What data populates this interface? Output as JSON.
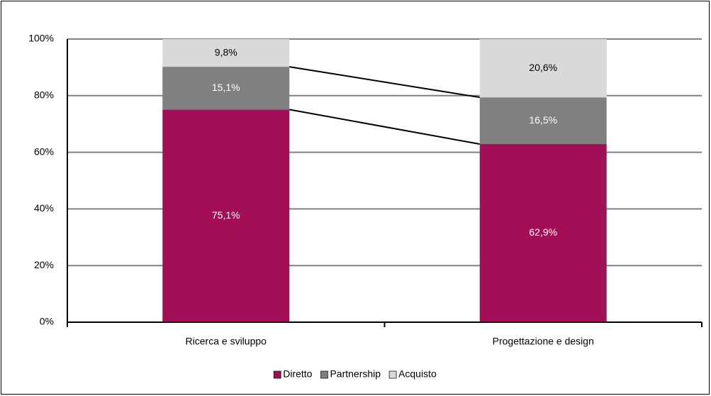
{
  "chart_data": {
    "type": "stacked_bar",
    "categories": [
      "Ricerca e sviluppo",
      "Progettazione e design"
    ],
    "series": [
      {
        "name": "Diretto",
        "color": "#a30f56",
        "values": [
          75.1,
          62.9
        ],
        "value_labels": [
          "75,1%",
          "62,9%"
        ]
      },
      {
        "name": "Partnership",
        "color": "#808080",
        "values": [
          15.1,
          16.5
        ],
        "value_labels": [
          "15,1%",
          "16,5%"
        ]
      },
      {
        "name": "Acquisto",
        "color": "#d9d9d9",
        "values": [
          9.8,
          20.6
        ],
        "value_labels": [
          "9,8%",
          "20,6%"
        ]
      }
    ],
    "ylim": [
      0,
      100
    ],
    "yticks": [
      {
        "value": 0,
        "label": "0%"
      },
      {
        "value": 20,
        "label": "20%"
      },
      {
        "value": 40,
        "label": "40%"
      },
      {
        "value": 60,
        "label": "60%"
      },
      {
        "value": 80,
        "label": "80%"
      },
      {
        "value": 100,
        "label": "100%"
      }
    ],
    "grid": true,
    "series_lines": true,
    "legend": "bottom"
  }
}
